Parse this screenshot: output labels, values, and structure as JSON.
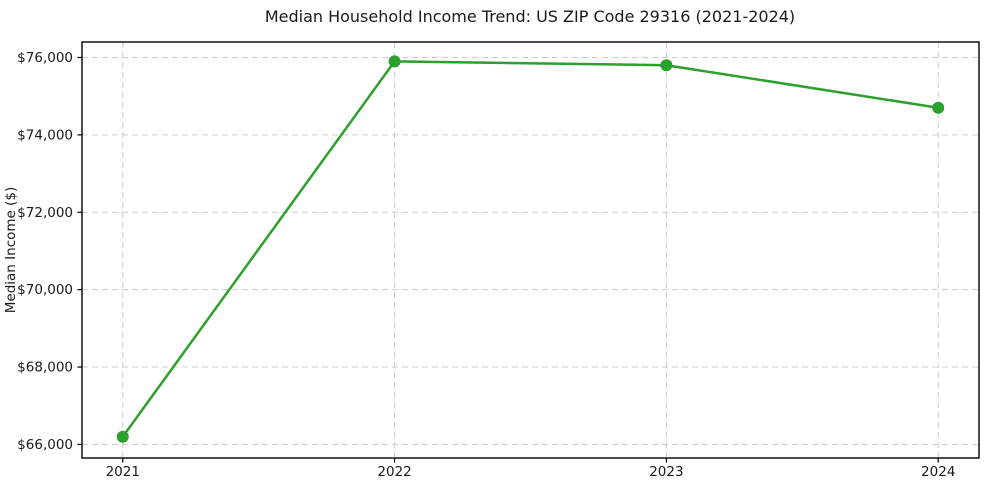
{
  "chart_data": {
    "type": "line",
    "title": "Median Household Income Trend: US ZIP Code 29316 (2021-2024)",
    "xlabel": "",
    "ylabel": "Median Income ($)",
    "x": [
      2021,
      2022,
      2023,
      2024
    ],
    "series": [
      {
        "name": "Median Household Income",
        "values": [
          66200,
          75900,
          75800,
          74700
        ]
      }
    ],
    "xticks": [
      2021,
      2022,
      2023,
      2024
    ],
    "xtick_labels": [
      "2021",
      "2022",
      "2023",
      "2024"
    ],
    "yticks": [
      66000,
      68000,
      70000,
      72000,
      74000,
      76000
    ],
    "ytick_labels": [
      "$66,000",
      "$68,000",
      "$70,000",
      "$72,000",
      "$74,000",
      "$76,000"
    ],
    "xlim": [
      2020.85,
      2024.15
    ],
    "ylim": [
      65650,
      76400
    ],
    "grid": true,
    "legend": "none",
    "colors": {
      "line": "#2ca02c",
      "marker": "#2ca02c",
      "grid": "#cccccc",
      "spine": "#000000",
      "text": "#1a1a1a",
      "background": "#ffffff"
    }
  }
}
